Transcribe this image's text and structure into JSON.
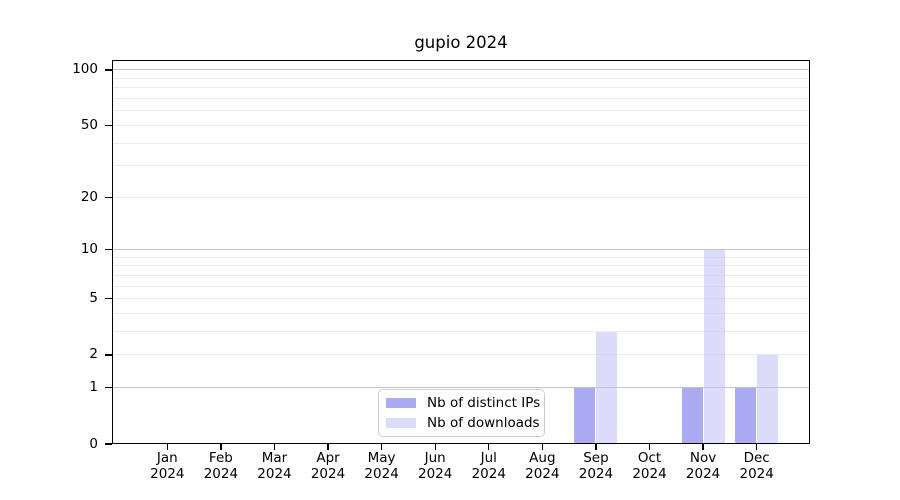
{
  "title": "gupio 2024",
  "legend": {
    "items": [
      {
        "label": "Nb of distinct IPs",
        "color": "#ababf3"
      },
      {
        "label": "Nb of downloads",
        "color": "#dcdcfa"
      }
    ]
  },
  "x_axis": {
    "months": [
      "Jan",
      "Feb",
      "Mar",
      "Apr",
      "May",
      "Jun",
      "Jul",
      "Aug",
      "Sep",
      "Oct",
      "Nov",
      "Dec"
    ],
    "year": "2024"
  },
  "chart_data": {
    "type": "bar",
    "title": "gupio 2024",
    "categories": [
      "Jan 2024",
      "Feb 2024",
      "Mar 2024",
      "Apr 2024",
      "May 2024",
      "Jun 2024",
      "Jul 2024",
      "Aug 2024",
      "Sep 2024",
      "Oct 2024",
      "Nov 2024",
      "Dec 2024"
    ],
    "series": [
      {
        "name": "Nb of distinct IPs",
        "values": [
          0,
          0,
          0,
          0,
          0,
          0,
          0,
          0,
          1,
          0,
          1,
          1
        ]
      },
      {
        "name": "Nb of downloads",
        "values": [
          0,
          0,
          0,
          0,
          0,
          0,
          0,
          0,
          3,
          0,
          10,
          2
        ]
      }
    ],
    "yticks": [
      0,
      1,
      2,
      5,
      10,
      20,
      50,
      100
    ],
    "yscale": "log10(1+y)",
    "ylim": [
      0,
      113
    ],
    "grid": true,
    "gridlines": {
      "major": [
        1,
        10,
        100
      ],
      "minor": [
        2,
        3,
        4,
        5,
        6,
        7,
        8,
        9,
        20,
        30,
        40,
        50,
        60,
        70,
        80,
        90
      ]
    },
    "legend_position": "bottom-center-inside"
  },
  "colors": {
    "ips_bar": "rgba(122,122,236,0.63)",
    "downloads_bar": "rgba(197,197,246,0.60)",
    "major_gridline": "#c3c3c3",
    "minor_gridline": "#ebebeb",
    "axis": "#000000",
    "legend_border": "#cccccc"
  }
}
